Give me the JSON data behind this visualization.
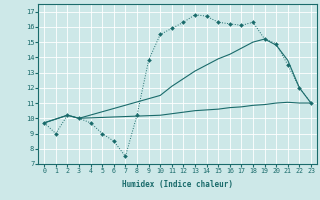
{
  "xlabel": "Humidex (Indice chaleur)",
  "xlim": [
    -0.5,
    23.5
  ],
  "ylim": [
    7,
    17.5
  ],
  "yticks": [
    7,
    8,
    9,
    10,
    11,
    12,
    13,
    14,
    15,
    16,
    17
  ],
  "xticks": [
    0,
    1,
    2,
    3,
    4,
    5,
    6,
    7,
    8,
    9,
    10,
    11,
    12,
    13,
    14,
    15,
    16,
    17,
    18,
    19,
    20,
    21,
    22,
    23
  ],
  "bg_color": "#cde8e8",
  "line_color": "#1a6b6b",
  "grid_color": "#ffffff",
  "line1_x": [
    0,
    1,
    2,
    3,
    4,
    5,
    6,
    7,
    8,
    9,
    10,
    11,
    12,
    13,
    14,
    15,
    16,
    17,
    18,
    19,
    20,
    21,
    22,
    23
  ],
  "line1_y": [
    9.7,
    9.0,
    10.2,
    10.0,
    9.7,
    9.0,
    8.5,
    7.5,
    10.2,
    13.8,
    15.5,
    15.9,
    16.3,
    16.8,
    16.7,
    16.3,
    16.2,
    16.1,
    16.3,
    15.2,
    14.9,
    13.5,
    12.0,
    11.0
  ],
  "line2_x": [
    0,
    2,
    3,
    10,
    11,
    12,
    13,
    14,
    15,
    16,
    17,
    18,
    19,
    20,
    21,
    22,
    23
  ],
  "line2_y": [
    9.7,
    10.2,
    10.0,
    10.2,
    10.3,
    10.4,
    10.5,
    10.55,
    10.6,
    10.7,
    10.75,
    10.85,
    10.9,
    11.0,
    11.05,
    11.0,
    11.0
  ],
  "line3_x": [
    0,
    2,
    3,
    10,
    11,
    12,
    13,
    14,
    15,
    16,
    17,
    18,
    19,
    20,
    21,
    22,
    23
  ],
  "line3_y": [
    9.7,
    10.2,
    10.0,
    11.5,
    12.1,
    12.6,
    13.1,
    13.5,
    13.9,
    14.2,
    14.6,
    15.0,
    15.2,
    14.8,
    13.8,
    12.0,
    11.0
  ]
}
